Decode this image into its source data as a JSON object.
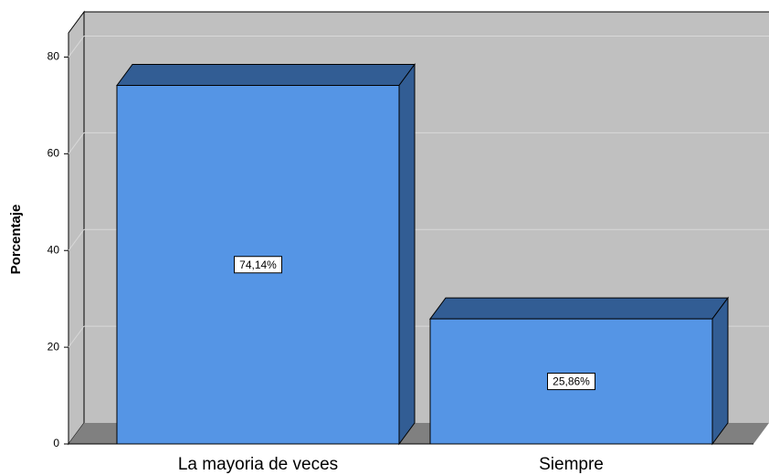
{
  "chart_data": {
    "type": "bar",
    "y_label": "Porcentaje",
    "categories": [
      "La mayoria de veces",
      "Siempre"
    ],
    "values": [
      74.14,
      25.86
    ],
    "value_labels": [
      "74,14%",
      "25,86%"
    ],
    "color": "#5595e5",
    "ylim": [
      0,
      85
    ],
    "yticks": [
      0,
      20,
      40,
      60,
      80
    ],
    "grid": true
  }
}
